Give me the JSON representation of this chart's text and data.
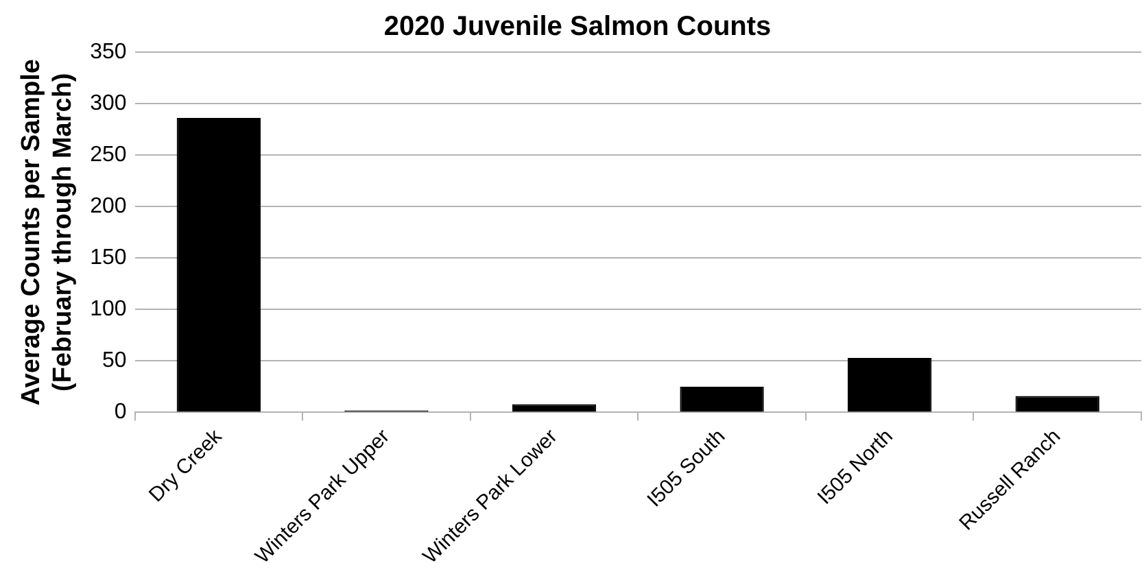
{
  "chart_data": {
    "type": "bar",
    "title": "2020 Juvenile Salmon Counts",
    "ylabel": "Average Counts per Sample\n(February through March)",
    "categories": [
      "Dry Creek",
      "Winters Park Upper",
      "Winters Park Lower",
      "I505 South",
      "I505 North",
      "Russell Ranch"
    ],
    "values": [
      286,
      2,
      8,
      25,
      53,
      16
    ],
    "color": "#000000",
    "ylim": [
      0,
      350
    ],
    "yticks": [
      0,
      50,
      100,
      150,
      200,
      250,
      300,
      350
    ],
    "grid": "y",
    "legend": false
  }
}
